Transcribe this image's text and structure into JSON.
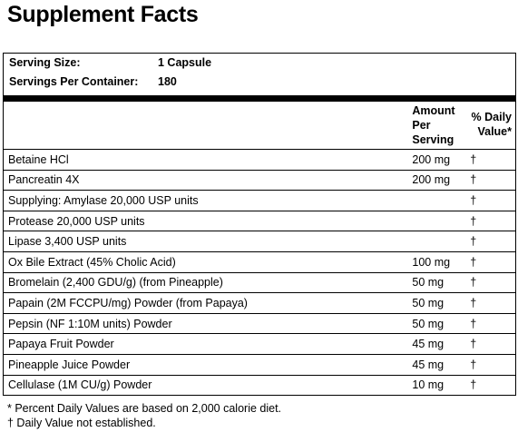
{
  "title": "Supplement Facts",
  "serving": {
    "size_label": "Serving Size:",
    "size": "1 Capsule",
    "per_container_label": "Servings Per Container:",
    "per_container": "180"
  },
  "table": {
    "header": [
      "Amount Per Serving",
      "% Daily Value*"
    ],
    "rows": [
      [
        "Betaine HCl",
        "200 mg",
        "†"
      ],
      [
        "Pancreatin 4X",
        "200 mg",
        "†"
      ],
      [
        "Supplying: Amylase 20,000 USP units",
        "",
        "†"
      ],
      [
        "Protease 20,000 USP units",
        "",
        "†"
      ],
      [
        "Lipase 3,400 USP units",
        "",
        "†"
      ],
      [
        "Ox Bile Extract (45% Cholic Acid)",
        "100 mg",
        "†"
      ],
      [
        "Bromelain (2,400 GDU/g) (from Pineapple)",
        "50 mg",
        "†"
      ],
      [
        "Papain (2M FCCPU/mg) Powder (from Papaya)",
        "50 mg",
        "†"
      ],
      [
        "Pepsin (NF 1:10M units) Powder",
        "50 mg",
        "†"
      ],
      [
        "Papaya Fruit Powder",
        "45 mg",
        "†"
      ],
      [
        "Pineapple Juice Powder",
        "45 mg",
        "†"
      ],
      [
        "Cellulase (1M CU/g) Powder",
        "10 mg",
        "†"
      ]
    ]
  },
  "footnotes": [
    "* Percent Daily Values are based on 2,000 calorie diet.",
    "† Daily Value not established."
  ]
}
